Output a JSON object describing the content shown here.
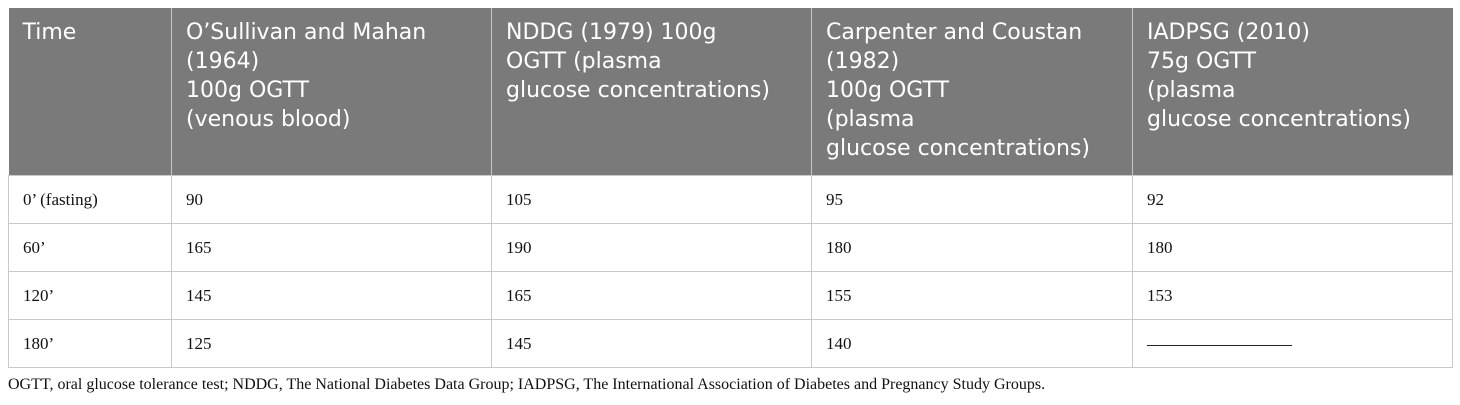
{
  "table": {
    "headers": [
      "Time",
      "O’Sullivan and Mahan\n(1964)\n100g OGTT\n(venous blood)",
      "NDDG (1979) 100g\nOGTT (plasma\nglucose concentrations)",
      "Carpenter and Coustan\n(1982)\n100g OGTT\n(plasma\nglucose concentrations)",
      "IADPSG (2010)\n75g OGTT\n(plasma\nglucose concentrations)"
    ],
    "rows": [
      [
        "0’ (fasting)",
        "90",
        "105",
        "95",
        "92"
      ],
      [
        "60’",
        "165",
        "190",
        "180",
        "180"
      ],
      [
        "120’",
        "145",
        "165",
        "155",
        "153"
      ],
      [
        "180’",
        "125",
        "145",
        "140",
        "—"
      ]
    ]
  },
  "footnote": "OGTT, oral glucose tolerance test; NDDG, The National Diabetes Data Group; IADPSG, The International Association of Diabetes and Pregnancy Study Groups."
}
